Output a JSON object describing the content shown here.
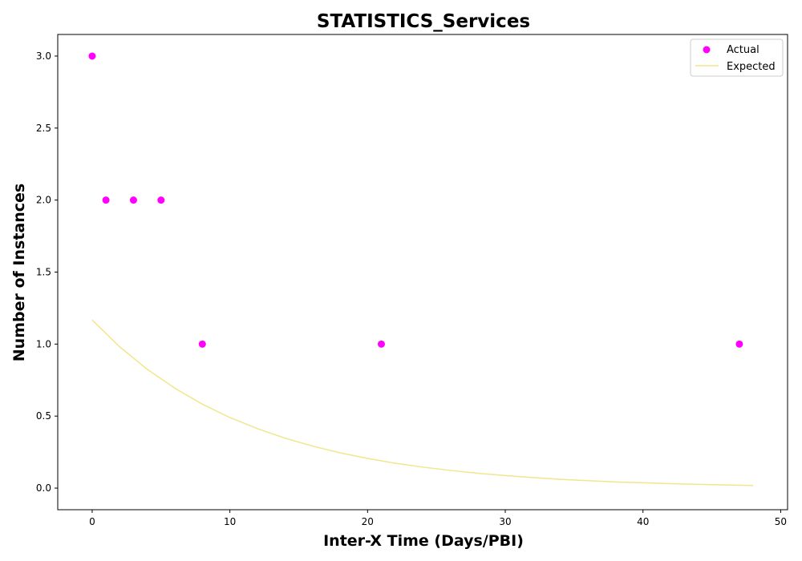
{
  "chart_data": {
    "type": "scatter",
    "title": "STATISTICS_Services",
    "xlabel": "Inter-X Time (Days/PBI)",
    "ylabel": "Number of Instances",
    "xlim": [
      -2.5,
      50.5
    ],
    "ylim": [
      -0.15,
      3.15
    ],
    "xticks": [
      0,
      10,
      20,
      30,
      40,
      50
    ],
    "yticks": [
      0.0,
      0.5,
      1.0,
      1.5,
      2.0,
      2.5,
      3.0
    ],
    "xtick_labels": [
      "0",
      "10",
      "20",
      "30",
      "40",
      "50"
    ],
    "ytick_labels": [
      "0.0",
      "0.5",
      "1.0",
      "1.5",
      "2.0",
      "2.5",
      "3.0"
    ],
    "grid": false,
    "legend_position": "top-right",
    "series": [
      {
        "name": "Actual",
        "kind": "scatter",
        "color": "#ff00ff",
        "x": [
          0,
          1,
          3,
          5,
          8,
          21,
          47
        ],
        "y": [
          3,
          2,
          2,
          2,
          1,
          1,
          1
        ]
      },
      {
        "name": "Expected",
        "kind": "line",
        "color": "#f0e68c",
        "x": [
          0,
          2,
          4,
          6,
          8,
          10,
          12,
          14,
          16,
          18,
          20,
          22,
          24,
          26,
          28,
          30,
          32,
          34,
          36,
          38,
          40,
          42,
          44,
          46,
          48
        ],
        "y": [
          1.167,
          0.981,
          0.825,
          0.694,
          0.583,
          0.49,
          0.413,
          0.347,
          0.292,
          0.245,
          0.206,
          0.173,
          0.146,
          0.123,
          0.103,
          0.087,
          0.073,
          0.061,
          0.052,
          0.043,
          0.037,
          0.031,
          0.026,
          0.022,
          0.018
        ]
      }
    ]
  }
}
